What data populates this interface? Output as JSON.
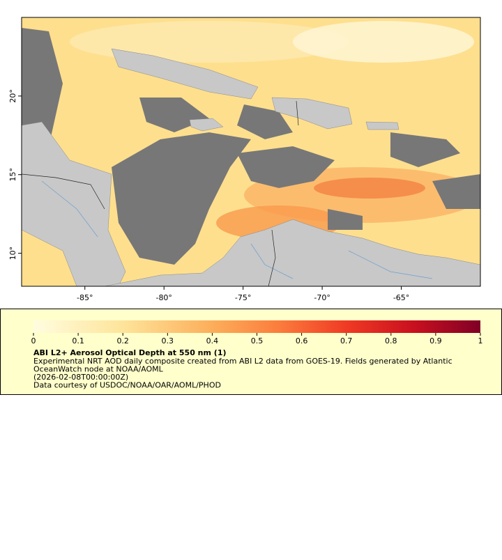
{
  "map": {
    "xlim": [
      -89,
      -60
    ],
    "ylim": [
      7.9,
      25
    ],
    "xticks": [
      {
        "value": -85,
        "label": "-85°"
      },
      {
        "value": -80,
        "label": "-80°"
      },
      {
        "value": -75,
        "label": "-75°"
      },
      {
        "value": -70,
        "label": "-70°"
      },
      {
        "value": -65,
        "label": "-65°"
      }
    ],
    "yticks": [
      {
        "value": 10,
        "label": "10°"
      },
      {
        "value": 15,
        "label": "15°"
      },
      {
        "value": 20,
        "label": "20°"
      }
    ]
  },
  "legend": {
    "colorbar": {
      "range": [
        0,
        1
      ],
      "ticks": [
        0,
        0.1,
        0.2,
        0.3,
        0.4,
        0.5,
        0.6,
        0.7,
        0.8,
        0.9,
        1
      ]
    },
    "title": "ABI L2+ Aerosol Optical Depth at 550 nm (1)",
    "lines": [
      "Experimental NRT AOD daily composite created from ABI L2 data from GOES-19. Fields generated by Atlantic",
      "OceanWatch node at NOAA/AOML",
      "(2026-02-08T00:00:00Z)",
      "Data courtesy of USDOC/NOAA/OAR/AOML/PHOD"
    ]
  }
}
